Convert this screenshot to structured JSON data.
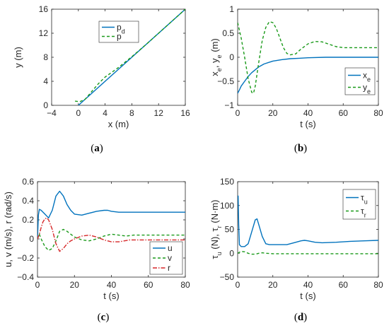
{
  "chart_data": [
    {
      "id": "a",
      "caption": "(a)",
      "type": "line",
      "xlabel": "x (m)",
      "ylabel": "y (m)",
      "xlim": [
        -4,
        16
      ],
      "ylim": [
        0,
        16
      ],
      "xticks": [
        "−4",
        "0",
        "4",
        "8",
        "12",
        "16"
      ],
      "yticks": [
        "0",
        "4",
        "8",
        "12",
        "16"
      ],
      "legend": {
        "position": "top-center"
      },
      "series": [
        {
          "name": "p",
          "sub": "d",
          "color": "#0072BD",
          "dash": "none",
          "x": [
            0,
            16
          ],
          "y": [
            0,
            16
          ]
        },
        {
          "name": "p",
          "sub": "",
          "color": "#1a9a1a",
          "dash": "4,3",
          "x": [
            -0.5,
            0.2,
            1.0,
            2.0,
            3.0,
            4.0,
            5.0,
            6.0,
            8.0,
            10.0,
            12.0,
            14.0,
            16.0
          ],
          "y": [
            0.7,
            0.6,
            1.0,
            2.3,
            3.6,
            4.7,
            5.5,
            6.3,
            8.1,
            10.0,
            12.0,
            14.0,
            16.0
          ]
        }
      ]
    },
    {
      "id": "b",
      "caption": "(b)",
      "type": "line",
      "xlabel": "t (s)",
      "ylabel": "x_e, y_e (m)",
      "xlim": [
        0,
        80
      ],
      "ylim": [
        -1,
        1
      ],
      "xticks": [
        "0",
        "20",
        "40",
        "60",
        "80"
      ],
      "yticks": [
        "−1",
        "−0.5",
        "0",
        "0.5",
        "1"
      ],
      "legend": {
        "position": "bottom-right"
      },
      "series": [
        {
          "name": "x",
          "sub": "e",
          "color": "#0072BD",
          "dash": "none",
          "x": [
            0,
            1,
            2,
            4,
            6,
            8,
            10,
            12,
            15,
            20,
            25,
            30,
            35,
            40,
            50,
            60,
            70,
            80
          ],
          "y": [
            -0.75,
            -0.68,
            -0.6,
            -0.5,
            -0.4,
            -0.32,
            -0.26,
            -0.2,
            -0.14,
            -0.08,
            -0.05,
            -0.03,
            -0.02,
            -0.01,
            0,
            0,
            0,
            0
          ]
        },
        {
          "name": "y",
          "sub": "e",
          "color": "#1a9a1a",
          "dash": "4,3",
          "x": [
            0,
            2,
            4,
            6,
            8,
            9,
            10,
            12,
            14,
            16,
            18,
            20,
            22,
            24,
            26,
            28,
            30,
            33,
            36,
            40,
            44,
            48,
            52,
            56,
            60,
            65,
            70,
            80
          ],
          "y": [
            0.72,
            0.4,
            0.0,
            -0.45,
            -0.73,
            -0.75,
            -0.6,
            -0.1,
            0.35,
            0.62,
            0.74,
            0.72,
            0.6,
            0.4,
            0.2,
            0.08,
            0.05,
            0.07,
            0.17,
            0.28,
            0.33,
            0.32,
            0.27,
            0.22,
            0.2,
            0.2,
            0.2,
            0.2
          ]
        }
      ]
    },
    {
      "id": "c",
      "caption": "(c)",
      "type": "line",
      "xlabel": "t (s)",
      "ylabel": "u, v (m/s), r (rad/s)",
      "xlim": [
        0,
        80
      ],
      "ylim": [
        -0.4,
        0.6
      ],
      "xticks": [
        "0",
        "20",
        "40",
        "60",
        "80"
      ],
      "yticks": [
        "−0.4",
        "−0.2",
        "0",
        "0.2",
        "0.4",
        "0.6"
      ],
      "legend": {
        "position": "bottom-right"
      },
      "series": [
        {
          "name": "u",
          "sub": "",
          "color": "#0072BD",
          "dash": "none",
          "x": [
            0,
            0.5,
            1,
            2,
            4,
            6,
            8,
            10,
            12,
            14,
            16,
            18,
            20,
            24,
            28,
            32,
            36,
            38,
            40,
            44,
            48,
            52,
            60,
            70,
            80
          ],
          "y": [
            0.0,
            0.25,
            0.31,
            0.3,
            0.26,
            0.22,
            0.3,
            0.45,
            0.5,
            0.45,
            0.36,
            0.3,
            0.26,
            0.25,
            0.27,
            0.29,
            0.3,
            0.3,
            0.29,
            0.28,
            0.28,
            0.28,
            0.28,
            0.28,
            0.28
          ]
        },
        {
          "name": "v",
          "sub": "",
          "color": "#1a9a1a",
          "dash": "4,3",
          "x": [
            0,
            1,
            2,
            4,
            6,
            8,
            10,
            12,
            14,
            16,
            18,
            20,
            24,
            28,
            32,
            36,
            40,
            44,
            48,
            52,
            60,
            70,
            80
          ],
          "y": [
            0,
            0.05,
            0.0,
            -0.08,
            -0.12,
            -0.1,
            -0.02,
            0.08,
            0.1,
            0.08,
            0.05,
            0.02,
            -0.01,
            -0.02,
            0.0,
            0.03,
            0.05,
            0.04,
            0.03,
            0.04,
            0.04,
            0.04,
            0.04
          ]
        },
        {
          "name": "r",
          "sub": "",
          "color": "#d62728",
          "dash": "6,2,1.5,2",
          "x": [
            0,
            1,
            2,
            3,
            4,
            5,
            6,
            8,
            10,
            12,
            14,
            16,
            18,
            20,
            24,
            28,
            30,
            32,
            36,
            40,
            44,
            50,
            60,
            70,
            80
          ],
          "y": [
            0,
            0.05,
            0.12,
            0.18,
            0.21,
            0.22,
            0.2,
            0.1,
            -0.05,
            -0.13,
            -0.1,
            -0.05,
            -0.02,
            0.0,
            0.03,
            0.04,
            0.03,
            0.02,
            -0.01,
            -0.03,
            -0.03,
            -0.01,
            -0.01,
            -0.01,
            -0.01
          ]
        }
      ]
    },
    {
      "id": "d",
      "caption": "(d)",
      "type": "line",
      "xlabel": "t (s)",
      "ylabel": "τ_u (N), τ_r (N·m)",
      "xlim": [
        0,
        80
      ],
      "ylim": [
        -50,
        150
      ],
      "xticks": [
        "0",
        "20",
        "40",
        "60",
        "80"
      ],
      "yticks": [
        "−50",
        "0",
        "50",
        "100",
        "150"
      ],
      "legend": {
        "position": "top-right"
      },
      "series": [
        {
          "name": "τ",
          "sub": "u",
          "color": "#0072BD",
          "dash": "none",
          "x": [
            0,
            0.3,
            0.6,
            1,
            2,
            4,
            6,
            8,
            10,
            11,
            12,
            14,
            16,
            18,
            20,
            24,
            28,
            32,
            36,
            38,
            40,
            44,
            48,
            56,
            64,
            72,
            80
          ],
          "y": [
            120,
            120,
            60,
            18,
            14,
            14,
            20,
            45,
            70,
            72,
            60,
            35,
            20,
            18,
            18,
            18,
            18,
            22,
            26,
            27,
            26,
            23,
            22,
            23,
            25,
            26,
            27
          ]
        },
        {
          "name": "τ",
          "sub": "r",
          "color": "#1a9a1a",
          "dash": "4,3",
          "x": [
            0,
            1,
            2,
            4,
            6,
            8,
            10,
            12,
            14,
            16,
            20,
            30,
            40,
            50,
            60,
            70,
            80
          ],
          "y": [
            0,
            2,
            4,
            3,
            0,
            -2,
            -2,
            0,
            1,
            0,
            -1,
            -1,
            -1,
            -1,
            -1,
            -1,
            -1
          ]
        }
      ]
    }
  ]
}
